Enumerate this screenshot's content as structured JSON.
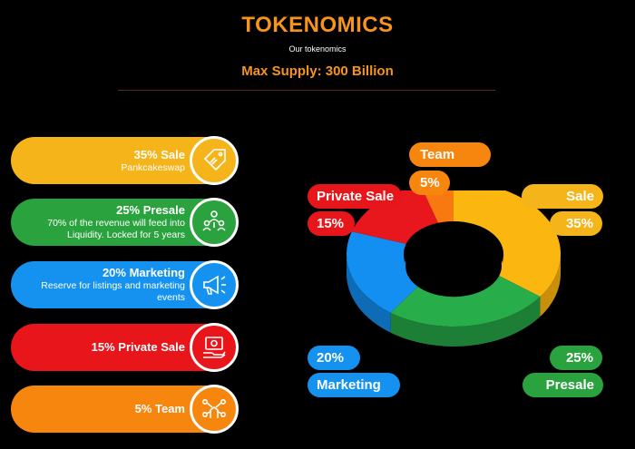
{
  "header": {
    "title": "TOKENOMICS",
    "subtitle": "Our tokenomics",
    "supply": "Max Supply: 300 Billion"
  },
  "allocations": [
    {
      "head": "35% Sale",
      "desc": "Pankcakeswap",
      "color": "#f5b41a",
      "icon": "sale-tag-icon"
    },
    {
      "head": "25% Presale",
      "desc": "70% of the revenue will feed into Liquidity. Locked for 5 years",
      "color": "#2aa33e",
      "icon": "group-people-icon"
    },
    {
      "head": "20% Marketing",
      "desc": "Reserve for listings and marketing events",
      "color": "#1592f0",
      "icon": "megaphone-icon"
    },
    {
      "head": "15% Private Sale",
      "desc": "",
      "color": "#e8151b",
      "icon": "cash-hand-icon"
    },
    {
      "head": "5% Team",
      "desc": "",
      "color": "#f7860f",
      "icon": "team-hands-icon"
    }
  ],
  "chart_data": {
    "type": "pie",
    "style": "3d-donut",
    "categories": [
      "Sale",
      "Presale",
      "Marketing",
      "Private Sale",
      "Team"
    ],
    "values": [
      35,
      25,
      20,
      15,
      5
    ],
    "value_labels": [
      "35%",
      "25%",
      "20%",
      "15%",
      "5%"
    ],
    "colors": [
      "#fbb710",
      "#27ae4a",
      "#138ff1",
      "#e8161d",
      "#f7790f"
    ],
    "side_colors": [
      "#c98e0a",
      "#1d7f36",
      "#0d6cb5",
      "#a90f14",
      "#b8580b"
    ]
  }
}
